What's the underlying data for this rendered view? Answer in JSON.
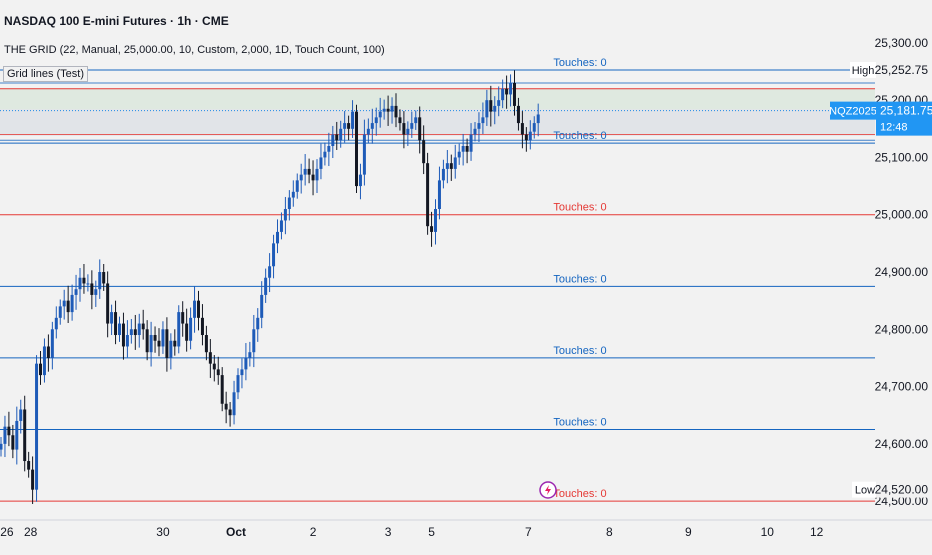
{
  "header": {
    "title": "NASDAQ 100 E-mini Futures · 1h · CME",
    "indicator": "THE GRID (22, Manual, 25,000.00, 10, Custom, 2,000, 1D, Touch Count, 100)",
    "grid_label": "Grid lines (Test)"
  },
  "chart_data": {
    "type": "candlestick",
    "symbol": "NQZ2025",
    "ylim": [
      24488,
      25326
    ],
    "price_ticks": [
      {
        "label": "25,300.00",
        "value": 25300
      },
      {
        "label": "25,200.00",
        "value": 25200
      },
      {
        "label": "25,100.00",
        "value": 25100
      },
      {
        "label": "25,000.00",
        "value": 25000
      },
      {
        "label": "24,900.00",
        "value": 24900
      },
      {
        "label": "24,800.00",
        "value": 24800
      },
      {
        "label": "24,700.00",
        "value": 24700
      },
      {
        "label": "24,600.00",
        "value": 24600
      },
      {
        "label": "24,500.00",
        "value": 24500
      }
    ],
    "date_ticks": [
      {
        "label": "26",
        "bar": 1.5,
        "bold": false
      },
      {
        "label": "28",
        "bar": 7.5,
        "bold": false
      },
      {
        "label": "30",
        "bar": 41,
        "bold": false
      },
      {
        "label": "Oct",
        "bar": 59.5,
        "bold": true
      },
      {
        "label": "2",
        "bar": 79,
        "bold": false
      },
      {
        "label": "3",
        "bar": 98,
        "bold": false
      },
      {
        "label": "5",
        "bar": 109,
        "bold": false
      },
      {
        "label": "7",
        "bar": 133.5,
        "bold": false
      },
      {
        "label": "8",
        "bar": 154,
        "bold": false
      },
      {
        "label": "9",
        "bar": 174,
        "bold": false
      },
      {
        "label": "10",
        "bar": 194,
        "bold": false
      },
      {
        "label": "12",
        "bar": 206.5,
        "bold": false
      }
    ],
    "grid_lines": [
      {
        "price": 25252.75,
        "color": "#1565c0",
        "touches": "Touches: 0",
        "tag": "High"
      },
      {
        "price": 25220,
        "color": "#e53935",
        "touches": "",
        "tag": ""
      },
      {
        "price": 25125,
        "color": "#1565c0",
        "touches": "Touches: 0",
        "tag": ""
      },
      {
        "price": 25000,
        "color": "#e53935",
        "touches": "Touches: 0",
        "tag": ""
      },
      {
        "price": 24875,
        "color": "#1565c0",
        "touches": "Touches: 0",
        "tag": ""
      },
      {
        "price": 24750,
        "color": "#1565c0",
        "touches": "Touches: 0",
        "tag": ""
      },
      {
        "price": 24625,
        "color": "#1565c0",
        "touches": "Touches: 0",
        "tag": ""
      },
      {
        "price": 24500,
        "color": "#e53935",
        "touches": "Touches: 0",
        "tag": ""
      }
    ],
    "zones": [
      {
        "from": 25184,
        "to": 25220,
        "color": "#dfe9e0"
      },
      {
        "from": 25138,
        "to": 25184,
        "color": "#e1e4e8"
      }
    ],
    "current_price": {
      "symbol": "NQZ2025",
      "price": "25,181.75",
      "value": 25181.75,
      "countdown": "12:48"
    },
    "low_label": {
      "text": "Low",
      "value": 24520
    },
    "high_price_label": "25,252.75",
    "low_price_label": "24,520.00",
    "colors": {
      "up": "#1e5bb8",
      "down": "#131722",
      "marker": "#9c27b0"
    },
    "close": [
      24600,
      24630,
      24615,
      24590,
      24640,
      24660,
      24570,
      24555,
      24520,
      24740,
      24720,
      24770,
      24750,
      24800,
      24820,
      24840,
      24850,
      24830,
      24860,
      24870,
      24890,
      24880,
      24880,
      24860,
      24870,
      24900,
      24880,
      24810,
      24830,
      24790,
      24810,
      24770,
      24790,
      24800,
      24790,
      24810,
      24800,
      24760,
      24790,
      24780,
      24770,
      24800,
      24750,
      24780,
      24770,
      24830,
      24810,
      24780,
      24820,
      24850,
      24820,
      24790,
      24760,
      24740,
      24730,
      24720,
      24670,
      24660,
      24650,
      24690,
      24720,
      24730,
      24750,
      24760,
      24800,
      24820,
      24860,
      24890,
      24910,
      24950,
      24970,
      24990,
      25010,
      25030,
      25040,
      25060,
      25070,
      25080,
      25070,
      25060,
      25080,
      25100,
      25110,
      25120,
      25140,
      25130,
      25150,
      25160,
      25150,
      25180,
      25050,
      25070,
      25140,
      25150,
      25160,
      25170,
      25180,
      25185,
      25180,
      25190,
      25170,
      25160,
      25140,
      25150,
      25160,
      25170,
      25130,
      25090,
      24980,
      24970,
      25010,
      25060,
      25080,
      25090,
      25080,
      25100,
      25110,
      25120,
      25110,
      25140,
      25150,
      25160,
      25170,
      25200,
      25180,
      25190,
      25200,
      25220,
      25210,
      25230,
      25190,
      25160,
      25140,
      25130,
      25145,
      25160,
      25175
    ]
  }
}
